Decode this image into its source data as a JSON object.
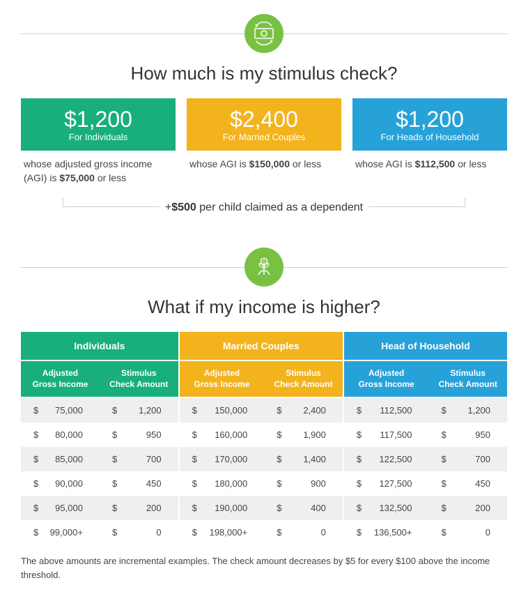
{
  "colors": {
    "green": "#18af7a",
    "yellow": "#f3b31d",
    "blue": "#27a2d9",
    "icon_bg": "#79c143"
  },
  "section1": {
    "title": "How much is my stimulus check?",
    "cards": [
      {
        "amount": "$1,200",
        "label": "For Individuals",
        "desc_pre": "whose adjusted gross income (AGI) is ",
        "desc_bold": "$75,000",
        "desc_post": " or less",
        "color": "#18af7a"
      },
      {
        "amount": "$2,400",
        "label": "For Married Couples",
        "desc_pre": "whose AGI is ",
        "desc_bold": "$150,000",
        "desc_post": " or less",
        "color": "#f3b31d"
      },
      {
        "amount": "$1,200",
        "label": "For Heads of Household",
        "desc_pre": "whose AGI is ",
        "desc_bold": "$112,500",
        "desc_post": " or less",
        "color": "#27a2d9"
      }
    ],
    "bracket_pre": "+",
    "bracket_bold": "$500",
    "bracket_post": " per child claimed as a dependent"
  },
  "section2": {
    "title": "What if my income is higher?",
    "groups": [
      {
        "label": "Individuals",
        "color": "#18af7a"
      },
      {
        "label": "Married Couples",
        "color": "#f3b31d"
      },
      {
        "label": "Head of Household",
        "color": "#27a2d9"
      }
    ],
    "sub_headers": [
      "Adjusted Gross Income",
      "Stimulus Check Amount"
    ],
    "rows": [
      {
        "alt": true,
        "cells": [
          "75,000",
          "1,200",
          "150,000",
          "2,400",
          "112,500",
          "1,200"
        ]
      },
      {
        "alt": false,
        "cells": [
          "80,000",
          "950",
          "160,000",
          "1,900",
          "117,500",
          "950"
        ]
      },
      {
        "alt": true,
        "cells": [
          "85,000",
          "700",
          "170,000",
          "1,400",
          "122,500",
          "700"
        ]
      },
      {
        "alt": false,
        "cells": [
          "90,000",
          "450",
          "180,000",
          "900",
          "127,500",
          "450"
        ]
      },
      {
        "alt": true,
        "cells": [
          "95,000",
          "200",
          "190,000",
          "400",
          "132,500",
          "200"
        ]
      },
      {
        "alt": false,
        "cells": [
          "99,000+",
          "0",
          "198,000+",
          "0",
          "136,500+",
          "0"
        ]
      }
    ],
    "footnote": "The above amounts are incremental examples. The check amount decreases by $5 for every $100 above the income threshold."
  }
}
